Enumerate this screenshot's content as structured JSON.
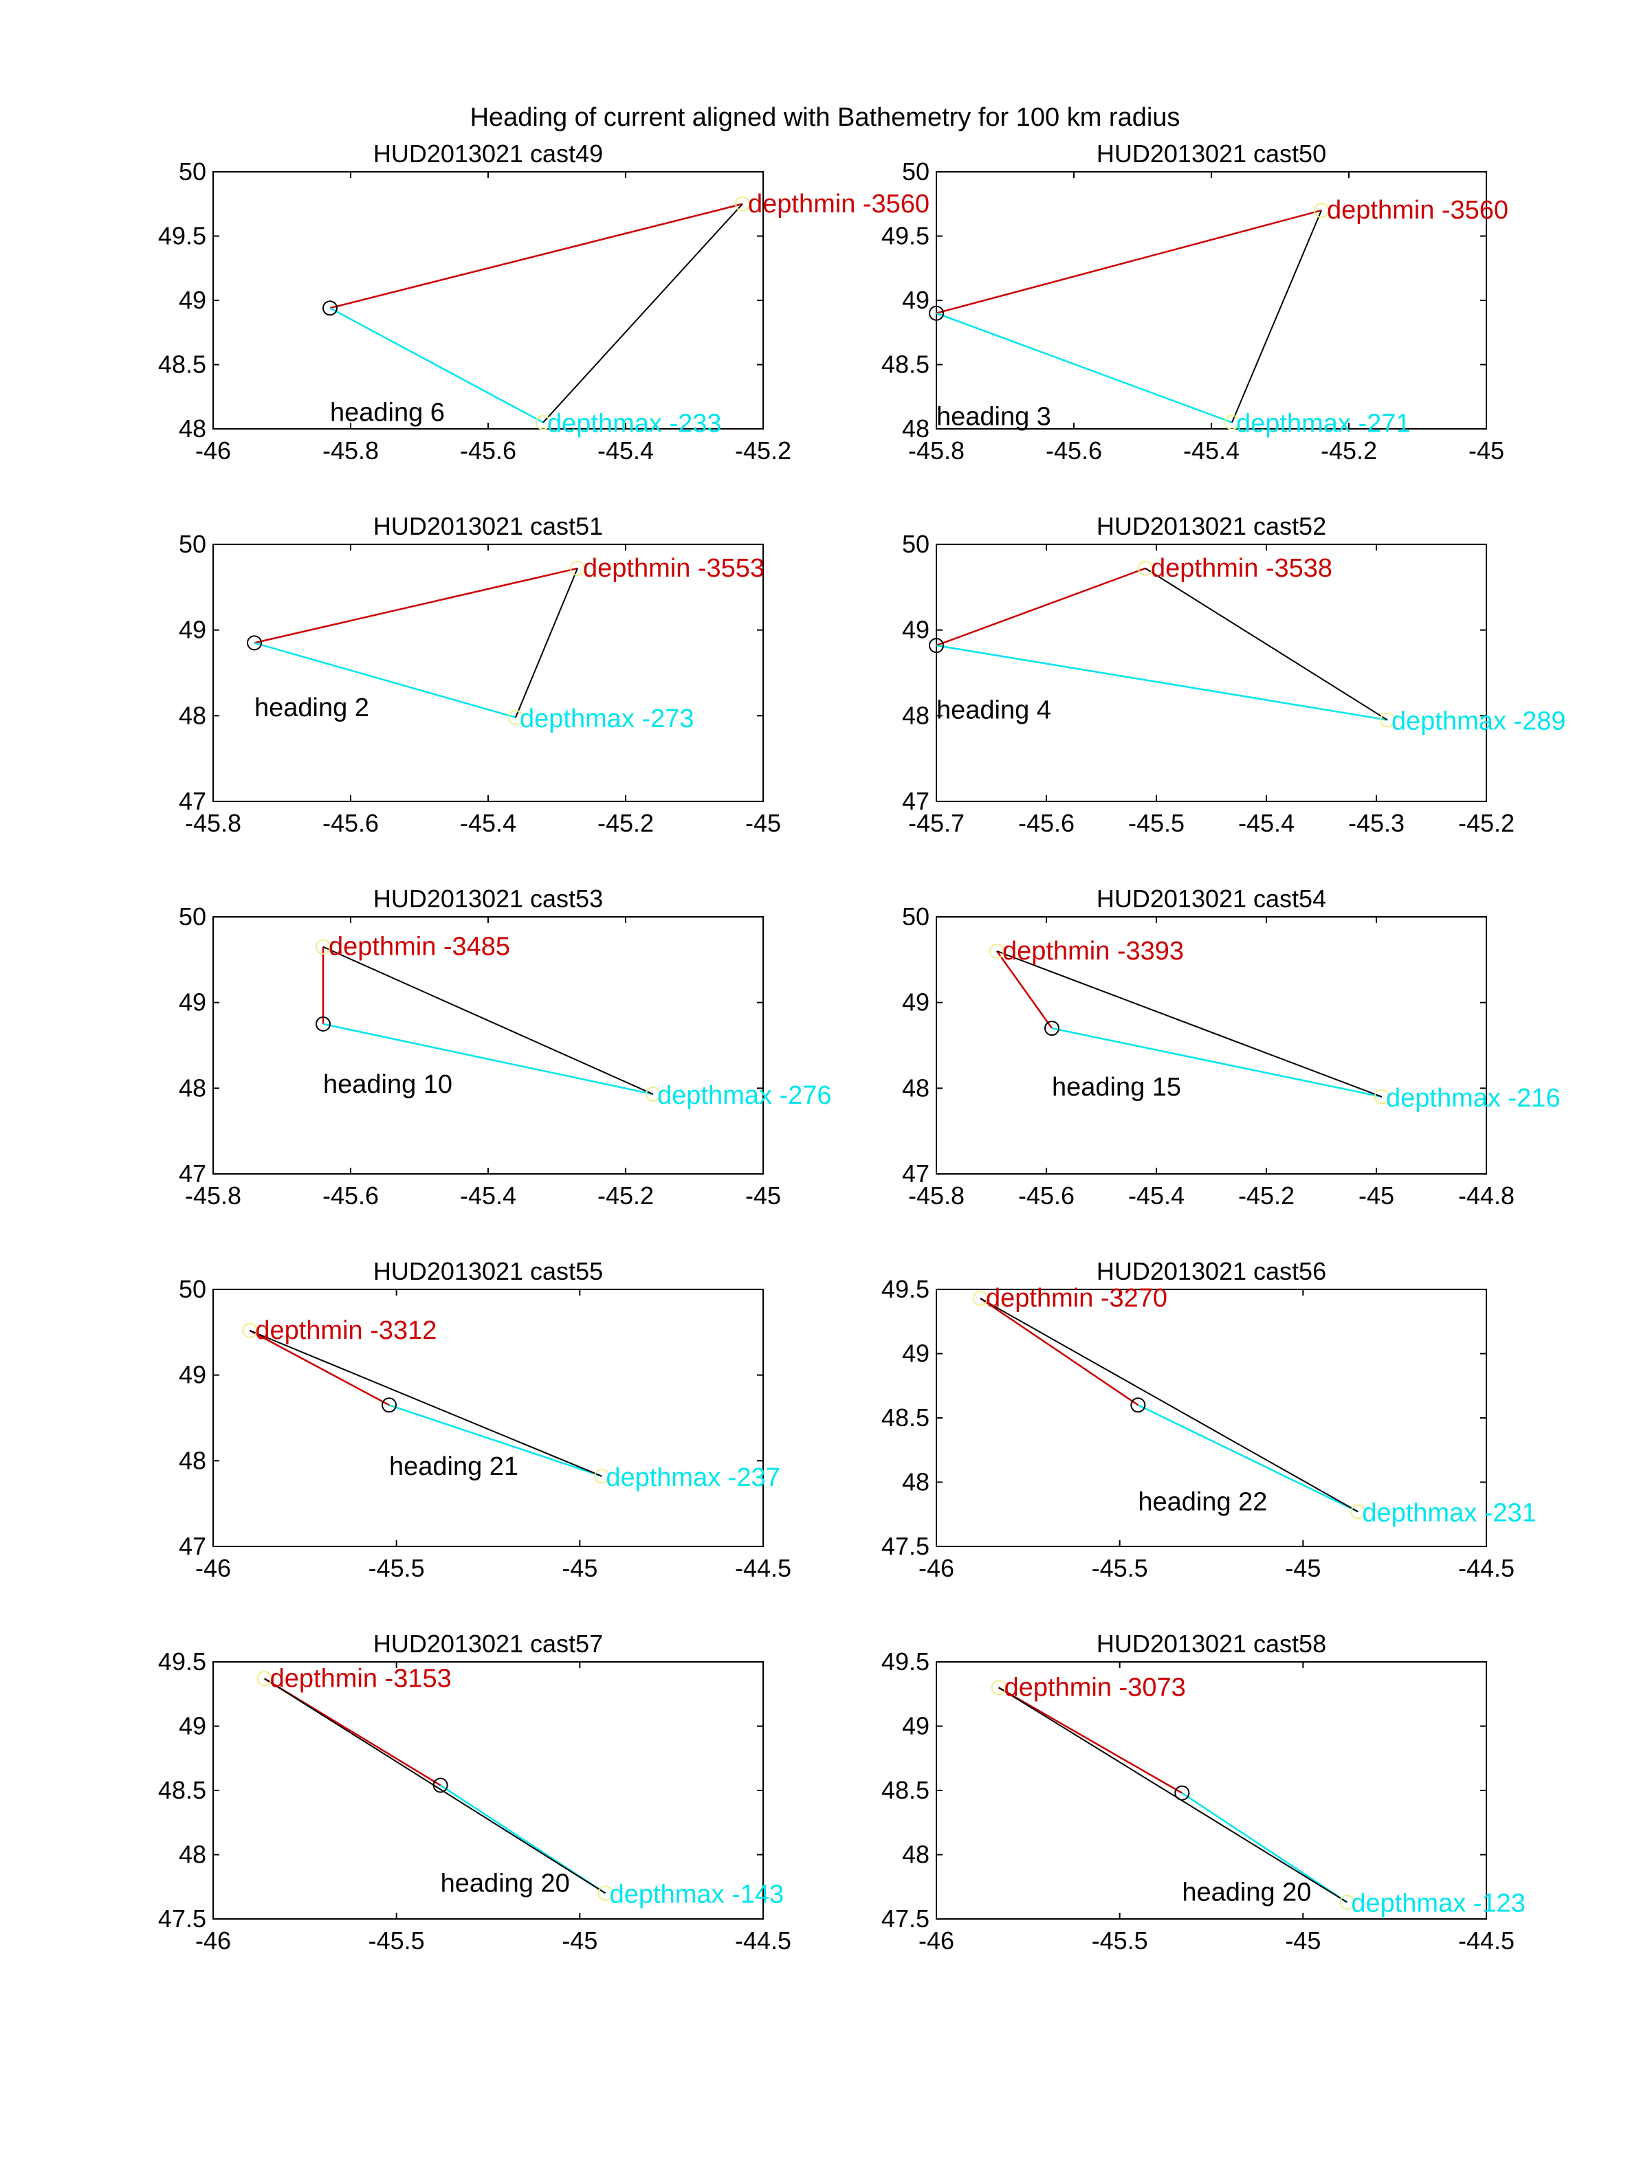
{
  "figure": {
    "title": "Heading of current aligned with Bathemetry for 100 km radius"
  },
  "colors": {
    "min": "#cc0000",
    "max": "#00e5ee",
    "center": "#000000",
    "marker_min_max": "#f2ee8a"
  },
  "chart_data": [
    {
      "type": "line",
      "title": "HUD2013021 cast49",
      "xlim": [
        -46,
        -45.2
      ],
      "ylim": [
        48,
        50
      ],
      "xticks": [
        -46,
        -45.8,
        -45.6,
        -45.4,
        -45.2
      ],
      "yticks": [
        48,
        48.5,
        49,
        49.5,
        50
      ],
      "center": [
        -45.83,
        48.94
      ],
      "min_point": [
        -45.23,
        49.75
      ],
      "max_point": [
        -45.52,
        48.05
      ],
      "min_label": "depthmin -3560",
      "max_label": "depthmax -233",
      "heading_label": "heading 6",
      "heading_at": [
        -45.83,
        48.05
      ]
    },
    {
      "type": "line",
      "title": "HUD2013021 cast50",
      "xlim": [
        -45.8,
        -45
      ],
      "ylim": [
        48,
        50
      ],
      "xticks": [
        -45.8,
        -45.6,
        -45.4,
        -45.2,
        -45
      ],
      "yticks": [
        48,
        48.5,
        49,
        49.5,
        50
      ],
      "center": [
        -45.8,
        48.9
      ],
      "min_point": [
        -45.24,
        49.7
      ],
      "max_point": [
        -45.37,
        48.05
      ],
      "min_label": "depthmin -3560",
      "max_label": "depthmax -271",
      "heading_label": "heading 3",
      "heading_at": [
        -45.8,
        48.02
      ]
    },
    {
      "type": "line",
      "title": "HUD2013021 cast51",
      "xlim": [
        -45.8,
        -45
      ],
      "ylim": [
        47,
        50
      ],
      "xticks": [
        -45.8,
        -45.6,
        -45.4,
        -45.2,
        -45
      ],
      "yticks": [
        47,
        48,
        49,
        50
      ],
      "center": [
        -45.74,
        48.85
      ],
      "min_point": [
        -45.27,
        49.72
      ],
      "max_point": [
        -45.36,
        47.98
      ],
      "min_label": "depthmin -3553",
      "max_label": "depthmax -273",
      "heading_label": "heading 2",
      "heading_at": [
        -45.74,
        47.98
      ]
    },
    {
      "type": "line",
      "title": "HUD2013021 cast52",
      "xlim": [
        -45.7,
        -45.2
      ],
      "ylim": [
        47,
        50
      ],
      "xticks": [
        -45.7,
        -45.6,
        -45.5,
        -45.4,
        -45.3,
        -45.2
      ],
      "yticks": [
        47,
        48,
        49,
        50
      ],
      "center": [
        -45.7,
        48.82
      ],
      "min_point": [
        -45.51,
        49.72
      ],
      "max_point": [
        -45.29,
        47.95
      ],
      "min_label": "depthmin -3538",
      "max_label": "depthmax -289",
      "heading_label": "heading 4",
      "heading_at": [
        -45.7,
        47.95
      ]
    },
    {
      "type": "line",
      "title": "HUD2013021 cast53",
      "xlim": [
        -45.8,
        -45
      ],
      "ylim": [
        47,
        50
      ],
      "xticks": [
        -45.8,
        -45.6,
        -45.4,
        -45.2,
        -45
      ],
      "yticks": [
        47,
        48,
        49,
        50
      ],
      "center": [
        -45.64,
        48.75
      ],
      "min_point": [
        -45.64,
        49.65
      ],
      "max_point": [
        -45.16,
        47.93
      ],
      "min_label": "depthmin -3485",
      "max_label": "depthmax -276",
      "heading_label": "heading 10",
      "heading_at": [
        -45.64,
        47.93
      ]
    },
    {
      "type": "line",
      "title": "HUD2013021 cast54",
      "xlim": [
        -45.8,
        -44.8
      ],
      "ylim": [
        47,
        50
      ],
      "xticks": [
        -45.8,
        -45.6,
        -45.4,
        -45.2,
        -45,
        -44.8
      ],
      "yticks": [
        47,
        48,
        49,
        50
      ],
      "center": [
        -45.59,
        48.7
      ],
      "min_point": [
        -45.69,
        49.6
      ],
      "max_point": [
        -44.99,
        47.9
      ],
      "min_label": "depthmin -3393",
      "max_label": "depthmax -216",
      "heading_label": "heading 15",
      "heading_at": [
        -45.59,
        47.9
      ]
    },
    {
      "type": "line",
      "title": "HUD2013021 cast55",
      "xlim": [
        -46,
        -44.5
      ],
      "ylim": [
        47,
        50
      ],
      "xticks": [
        -46,
        -45.5,
        -45,
        -44.5
      ],
      "yticks": [
        47,
        48,
        49,
        50
      ],
      "center": [
        -45.52,
        48.65
      ],
      "min_point": [
        -45.9,
        49.52
      ],
      "max_point": [
        -44.94,
        47.82
      ],
      "min_label": "depthmin -3312",
      "max_label": "depthmax -237",
      "heading_label": "heading 21",
      "heading_at": [
        -45.52,
        47.82
      ]
    },
    {
      "type": "line",
      "title": "HUD2013021 cast56",
      "xlim": [
        -46,
        -44.5
      ],
      "ylim": [
        47.5,
        49.5
      ],
      "xticks": [
        -46,
        -45.5,
        -45,
        -44.5
      ],
      "yticks": [
        47.5,
        48,
        48.5,
        49,
        49.5
      ],
      "center": [
        -45.45,
        48.6
      ],
      "min_point": [
        -45.88,
        49.43
      ],
      "max_point": [
        -44.85,
        47.77
      ],
      "min_label": "depthmin -3270",
      "max_label": "depthmax -231",
      "heading_label": "heading 22",
      "heading_at": [
        -45.45,
        47.77
      ]
    },
    {
      "type": "line",
      "title": "HUD2013021 cast57",
      "xlim": [
        -46,
        -44.5
      ],
      "ylim": [
        47.5,
        49.5
      ],
      "xticks": [
        -46,
        -45.5,
        -45,
        -44.5
      ],
      "yticks": [
        47.5,
        48,
        48.5,
        49,
        49.5
      ],
      "center": [
        -45.38,
        48.54
      ],
      "min_point": [
        -45.86,
        49.37
      ],
      "max_point": [
        -44.93,
        47.7
      ],
      "min_label": "depthmin -3153",
      "max_label": "depthmax -143",
      "heading_label": "heading 20",
      "heading_at": [
        -45.38,
        47.7
      ]
    },
    {
      "type": "line",
      "title": "HUD2013021 cast58",
      "xlim": [
        -46,
        -44.5
      ],
      "ylim": [
        47.5,
        49.5
      ],
      "xticks": [
        -46,
        -45.5,
        -45,
        -44.5
      ],
      "yticks": [
        47.5,
        48,
        48.5,
        49,
        49.5
      ],
      "center": [
        -45.33,
        48.48
      ],
      "min_point": [
        -45.83,
        49.3
      ],
      "max_point": [
        -44.88,
        47.63
      ],
      "min_label": "depthmin -3073",
      "max_label": "depthmax -123",
      "heading_label": "heading 20",
      "heading_at": [
        -45.33,
        47.63
      ]
    }
  ]
}
